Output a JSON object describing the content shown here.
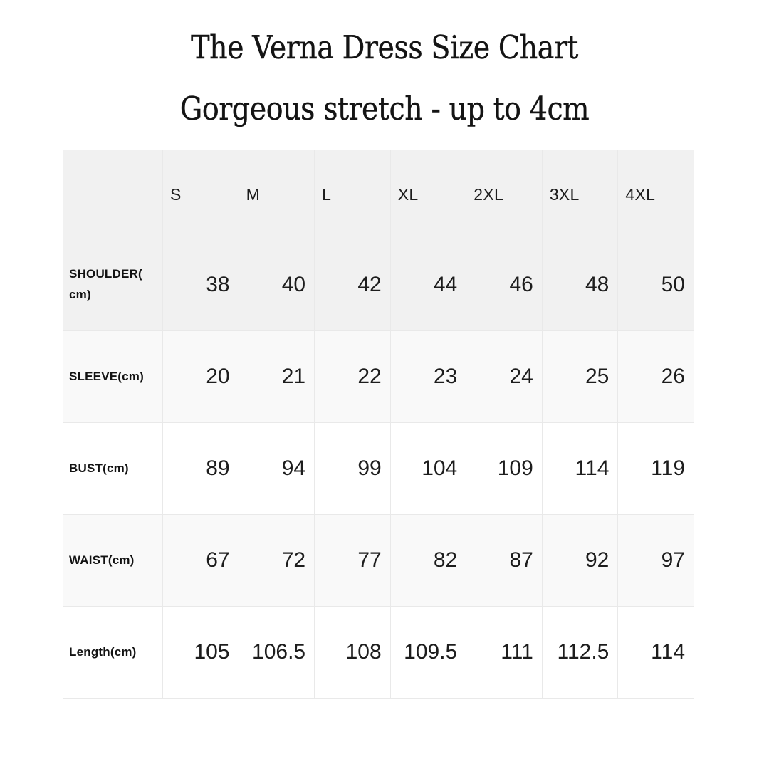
{
  "chart_data": {
    "type": "table",
    "title": "The Verna Dress Size Chart",
    "subtitle": "Gorgeous stretch - up to 4cm",
    "columns": [
      "",
      "S",
      "M",
      "L",
      "XL",
      "2XL",
      "3XL",
      "4XL"
    ],
    "rows": [
      {
        "label": "SHOULDER(\ncm)",
        "values": [
          38,
          40,
          42,
          44,
          46,
          48,
          50
        ]
      },
      {
        "label": "SLEEVE(cm)",
        "values": [
          20,
          21,
          22,
          23,
          24,
          25,
          26
        ]
      },
      {
        "label": "BUST(cm)",
        "values": [
          89,
          94,
          99,
          104,
          109,
          114,
          119
        ]
      },
      {
        "label": "WAIST(cm)",
        "values": [
          67,
          72,
          77,
          82,
          87,
          92,
          97
        ]
      },
      {
        "label": "Length(cm)",
        "values": [
          105,
          106.5,
          108,
          109.5,
          111,
          112.5,
          114
        ]
      }
    ],
    "units": "cm",
    "layout": {
      "header_row_shaded": true,
      "row_stripes": [
        "#f1f1f1",
        "#f9f9f9",
        "#ffffff",
        "#f9f9f9",
        "#ffffff"
      ]
    }
  },
  "style": {
    "background": "#ffffff",
    "header_bg": "#f1f1f1",
    "stripe_light": "#f9f9f9",
    "border_color": "#e9e9e9",
    "text_color": "#1a1a1a"
  }
}
